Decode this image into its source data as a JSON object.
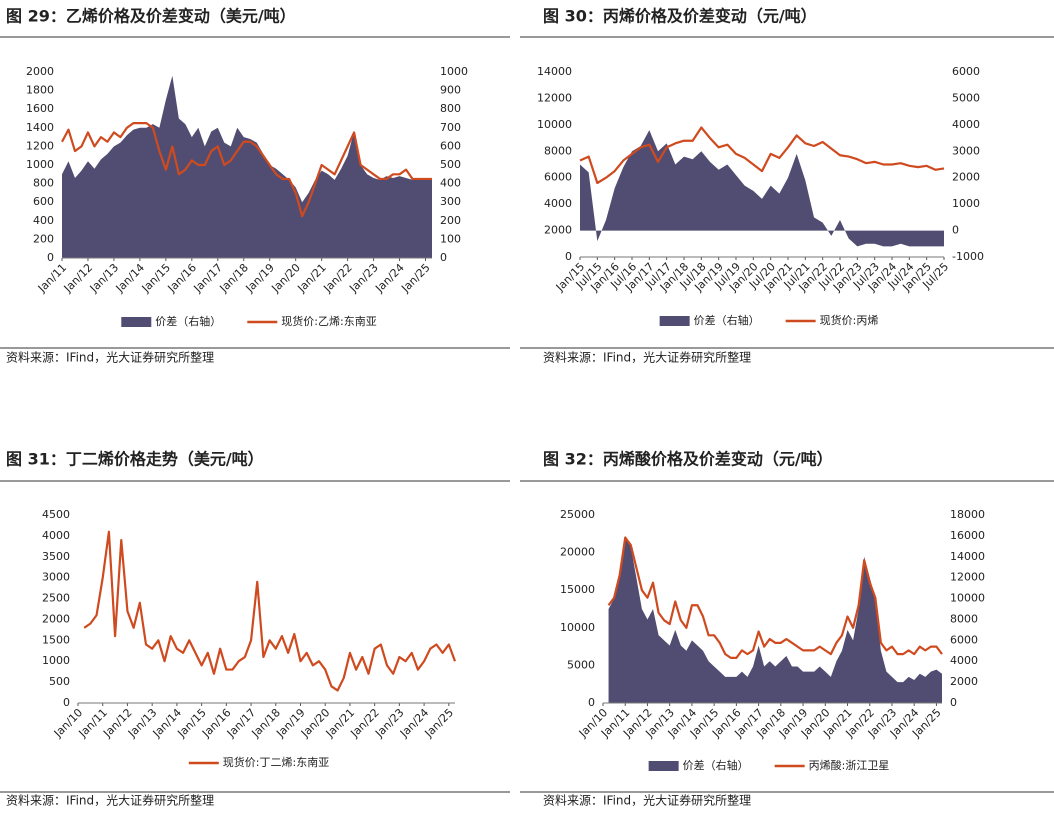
{
  "chart_data": [
    {
      "type": "combo",
      "title": "图 29：乙烯价格及价差变动（美元/吨）",
      "source": "资料来源：IFind，光大证券研究所整理",
      "categories": [
        "Jan/11",
        null,
        null,
        null,
        "Jan/12",
        null,
        null,
        null,
        "Jan/13",
        null,
        null,
        null,
        "Jan/14",
        null,
        null,
        null,
        "Jan/15",
        null,
        null,
        null,
        "Jan/16",
        null,
        null,
        null,
        "Jan/17",
        null,
        null,
        null,
        "Jan/18",
        null,
        null,
        null,
        "Jan/19",
        null,
        null,
        null,
        "Jan/20",
        null,
        null,
        null,
        "Jan/21",
        null,
        null,
        null,
        "Jan/22",
        null,
        null,
        null,
        "Jan/23",
        null,
        null,
        null,
        "Jan/24",
        null,
        null,
        null,
        "Jan/25",
        null
      ],
      "series": [
        {
          "name": "价差（右轴）",
          "kind": "area",
          "axis": "y2",
          "color": "#514d72",
          "values": [
            450,
            520,
            430,
            470,
            520,
            480,
            530,
            560,
            600,
            620,
            660,
            690,
            700,
            700,
            720,
            700,
            850,
            980,
            750,
            720,
            650,
            700,
            600,
            680,
            700,
            620,
            600,
            700,
            650,
            640,
            620,
            560,
            500,
            480,
            450,
            420,
            380,
            300,
            350,
            420,
            470,
            450,
            420,
            480,
            550,
            680,
            500,
            450,
            430,
            420,
            440,
            430,
            440,
            430,
            420,
            430,
            430,
            420
          ]
        },
        {
          "name": "现货价:乙烯:东南亚",
          "kind": "line",
          "color": "#cf4a1f",
          "values": [
            1250,
            1380,
            1150,
            1200,
            1350,
            1200,
            1300,
            1250,
            1350,
            1300,
            1400,
            1450,
            1450,
            1450,
            1400,
            1150,
            950,
            1200,
            900,
            950,
            1050,
            1000,
            1000,
            1150,
            1200,
            1000,
            1050,
            1150,
            1250,
            1250,
            1200,
            1100,
            1000,
            900,
            850,
            850,
            700,
            450,
            600,
            800,
            1000,
            950,
            900,
            1050,
            1200,
            1350,
            1000,
            950,
            900,
            850,
            850,
            900,
            900,
            950,
            850,
            850,
            850,
            850
          ]
        }
      ],
      "ylim": [
        0,
        2000
      ],
      "yticks": [
        0,
        200,
        400,
        600,
        800,
        1000,
        1200,
        1400,
        1600,
        1800,
        2000
      ],
      "y2lim": [
        0,
        1000
      ],
      "y2ticks": [
        0,
        100,
        200,
        300,
        400,
        500,
        600,
        700,
        800,
        900,
        1000
      ]
    },
    {
      "type": "combo",
      "title": "图 30：丙烯价格及价差变动（元/吨）",
      "source": "资料来源：IFind，光大证券研究所整理",
      "categories": [
        "Jan/15",
        null,
        "Jul/15",
        null,
        "Jan/16",
        null,
        "Jul/16",
        null,
        "Jan/17",
        null,
        "Jul/17",
        null,
        "Jan/18",
        null,
        "Jul/18",
        null,
        "Jan/19",
        null,
        "Jul/19",
        null,
        "Jan/20",
        null,
        "Jul/20",
        null,
        "Jan/21",
        null,
        "Jul/21",
        null,
        "Jan/22",
        null,
        "Jul/22",
        null,
        "Jan/23",
        null,
        "Jul/23",
        null,
        "Jan/24",
        null,
        "Jul/24",
        null,
        "Jan/25",
        null,
        "Jul/25"
      ],
      "series": [
        {
          "name": "价差（右轴）",
          "kind": "area",
          "axis": "y2",
          "color": "#514d72",
          "values": [
            2500,
            2200,
            -400,
            400,
            1600,
            2400,
            3000,
            3200,
            3800,
            3000,
            3300,
            2500,
            2800,
            2700,
            3000,
            2600,
            2300,
            2500,
            2100,
            1700,
            1500,
            1200,
            1700,
            1400,
            2000,
            2900,
            1900,
            500,
            300,
            -200,
            400,
            -300,
            -600,
            -500,
            -500,
            -600,
            -600,
            -500,
            -600,
            -600,
            -600,
            -600,
            -600
          ]
        },
        {
          "name": "现货价:丙烯",
          "kind": "line",
          "color": "#cf4a1f",
          "values": [
            7300,
            7600,
            5600,
            6000,
            6500,
            7300,
            7800,
            8300,
            8500,
            7200,
            8300,
            8600,
            8800,
            8800,
            9800,
            9000,
            8300,
            8500,
            7800,
            7500,
            7000,
            6500,
            7800,
            7500,
            8300,
            9200,
            8600,
            8400,
            8700,
            8200,
            7700,
            7600,
            7400,
            7100,
            7200,
            7000,
            7000,
            7100,
            6900,
            6800,
            6900,
            6600,
            6700
          ]
        }
      ],
      "ylim": [
        0,
        14000
      ],
      "yticks": [
        0,
        2000,
        4000,
        6000,
        8000,
        10000,
        12000,
        14000
      ],
      "y2lim": [
        -1000,
        6000
      ],
      "y2ticks": [
        -1000,
        0,
        1000,
        2000,
        3000,
        4000,
        5000,
        6000
      ]
    },
    {
      "type": "line",
      "title": "图 31：丁二烯价格走势（美元/吨）",
      "source": "资料来源：IFind，光大证券研究所整理",
      "categories": [
        "Jan/10",
        null,
        null,
        null,
        "Jan/11",
        null,
        null,
        null,
        "Jan/12",
        null,
        null,
        null,
        "Jan/13",
        null,
        null,
        null,
        "Jan/14",
        null,
        null,
        null,
        "Jan/15",
        null,
        null,
        null,
        "Jan/16",
        null,
        null,
        null,
        "Jan/17",
        null,
        null,
        null,
        "Jan/18",
        null,
        null,
        null,
        "Jan/19",
        null,
        null,
        null,
        "Jan/20",
        null,
        null,
        null,
        "Jan/21",
        null,
        null,
        null,
        "Jan/22",
        null,
        null,
        null,
        "Jan/23",
        null,
        null,
        null,
        "Jan/24",
        null,
        null,
        null,
        "Jan/25",
        null
      ],
      "series": [
        {
          "name": "现货价:丁二烯:东南亚",
          "kind": "line",
          "color": "#cf4a1f",
          "values": [
            null,
            1800,
            1900,
            2100,
            3000,
            4100,
            1600,
            3900,
            2200,
            1800,
            2400,
            1400,
            1300,
            1500,
            1000,
            1600,
            1300,
            1200,
            1500,
            1200,
            900,
            1200,
            700,
            1300,
            800,
            800,
            1000,
            1100,
            1500,
            2900,
            1100,
            1500,
            1300,
            1600,
            1200,
            1650,
            1000,
            1200,
            900,
            1000,
            800,
            400,
            300,
            600,
            1200,
            800,
            1100,
            700,
            1300,
            1400,
            900,
            700,
            1100,
            1000,
            1200,
            800,
            1000,
            1300,
            1400,
            1200,
            1400,
            1000
          ]
        }
      ],
      "ylim": [
        0,
        4500
      ],
      "yticks": [
        0,
        500,
        1000,
        1500,
        2000,
        2500,
        3000,
        3500,
        4000,
        4500
      ]
    },
    {
      "type": "combo",
      "title": "图 32：丙烯酸价格及价差变动（元/吨）",
      "source": "资料来源：IFind，光大证券研究所整理",
      "categories": [
        "Jan/10",
        null,
        null,
        null,
        "Jan/11",
        null,
        null,
        null,
        "Jan/12",
        null,
        null,
        null,
        "Jan/13",
        null,
        null,
        null,
        "Jan/14",
        null,
        null,
        null,
        "Jan/15",
        null,
        null,
        null,
        "Jan/16",
        null,
        null,
        null,
        "Jan/17",
        null,
        null,
        null,
        "Jan/18",
        null,
        null,
        null,
        "Jan/19",
        null,
        null,
        null,
        "Jan/20",
        null,
        null,
        null,
        "Jan/21",
        null,
        null,
        null,
        "Jan/22",
        null,
        null,
        null,
        "Jan/23",
        null,
        null,
        null,
        "Jan/24",
        null,
        null,
        null,
        "Jan/25",
        null
      ],
      "series": [
        {
          "name": "价差（右轴）",
          "kind": "area",
          "axis": "y2",
          "color": "#514d72",
          "values": [
            null,
            9000,
            10000,
            12000,
            16000,
            15000,
            12000,
            9000,
            8000,
            9000,
            6500,
            6000,
            5500,
            7000,
            5500,
            5000,
            6000,
            5500,
            5000,
            4000,
            3500,
            3000,
            2500,
            2500,
            2500,
            3000,
            2500,
            3500,
            5500,
            3500,
            4000,
            3500,
            4000,
            4500,
            3500,
            3500,
            3000,
            3000,
            3000,
            3500,
            3000,
            2500,
            4000,
            5000,
            7000,
            6000,
            9000,
            14000,
            12000,
            10000,
            5000,
            3000,
            2500,
            2000,
            2000,
            2500,
            2200,
            2800,
            2500,
            3000,
            3200,
            2800
          ]
        },
        {
          "name": "丙烯酸:浙江卫星",
          "kind": "line",
          "color": "#cf4a1f",
          "values": [
            null,
            13000,
            14000,
            17000,
            22000,
            21000,
            18000,
            15000,
            14000,
            16000,
            12000,
            11000,
            10500,
            13500,
            11000,
            10000,
            13000,
            13000,
            11500,
            9000,
            9000,
            8000,
            6500,
            6000,
            6000,
            7000,
            6500,
            7000,
            9500,
            7500,
            8500,
            8000,
            8000,
            8500,
            8000,
            7500,
            7000,
            7000,
            7000,
            7500,
            7000,
            6500,
            8000,
            9000,
            11500,
            10000,
            13000,
            19000,
            16000,
            14000,
            8000,
            7000,
            7500,
            6500,
            6500,
            7000,
            6500,
            7500,
            7000,
            7500,
            7500,
            6500
          ]
        }
      ],
      "ylim": [
        0,
        25000
      ],
      "yticks": [
        0,
        5000,
        10000,
        15000,
        20000,
        25000
      ],
      "y2lim": [
        0,
        18000
      ],
      "y2ticks": [
        0,
        2000,
        4000,
        6000,
        8000,
        10000,
        12000,
        14000,
        16000,
        18000
      ]
    }
  ]
}
